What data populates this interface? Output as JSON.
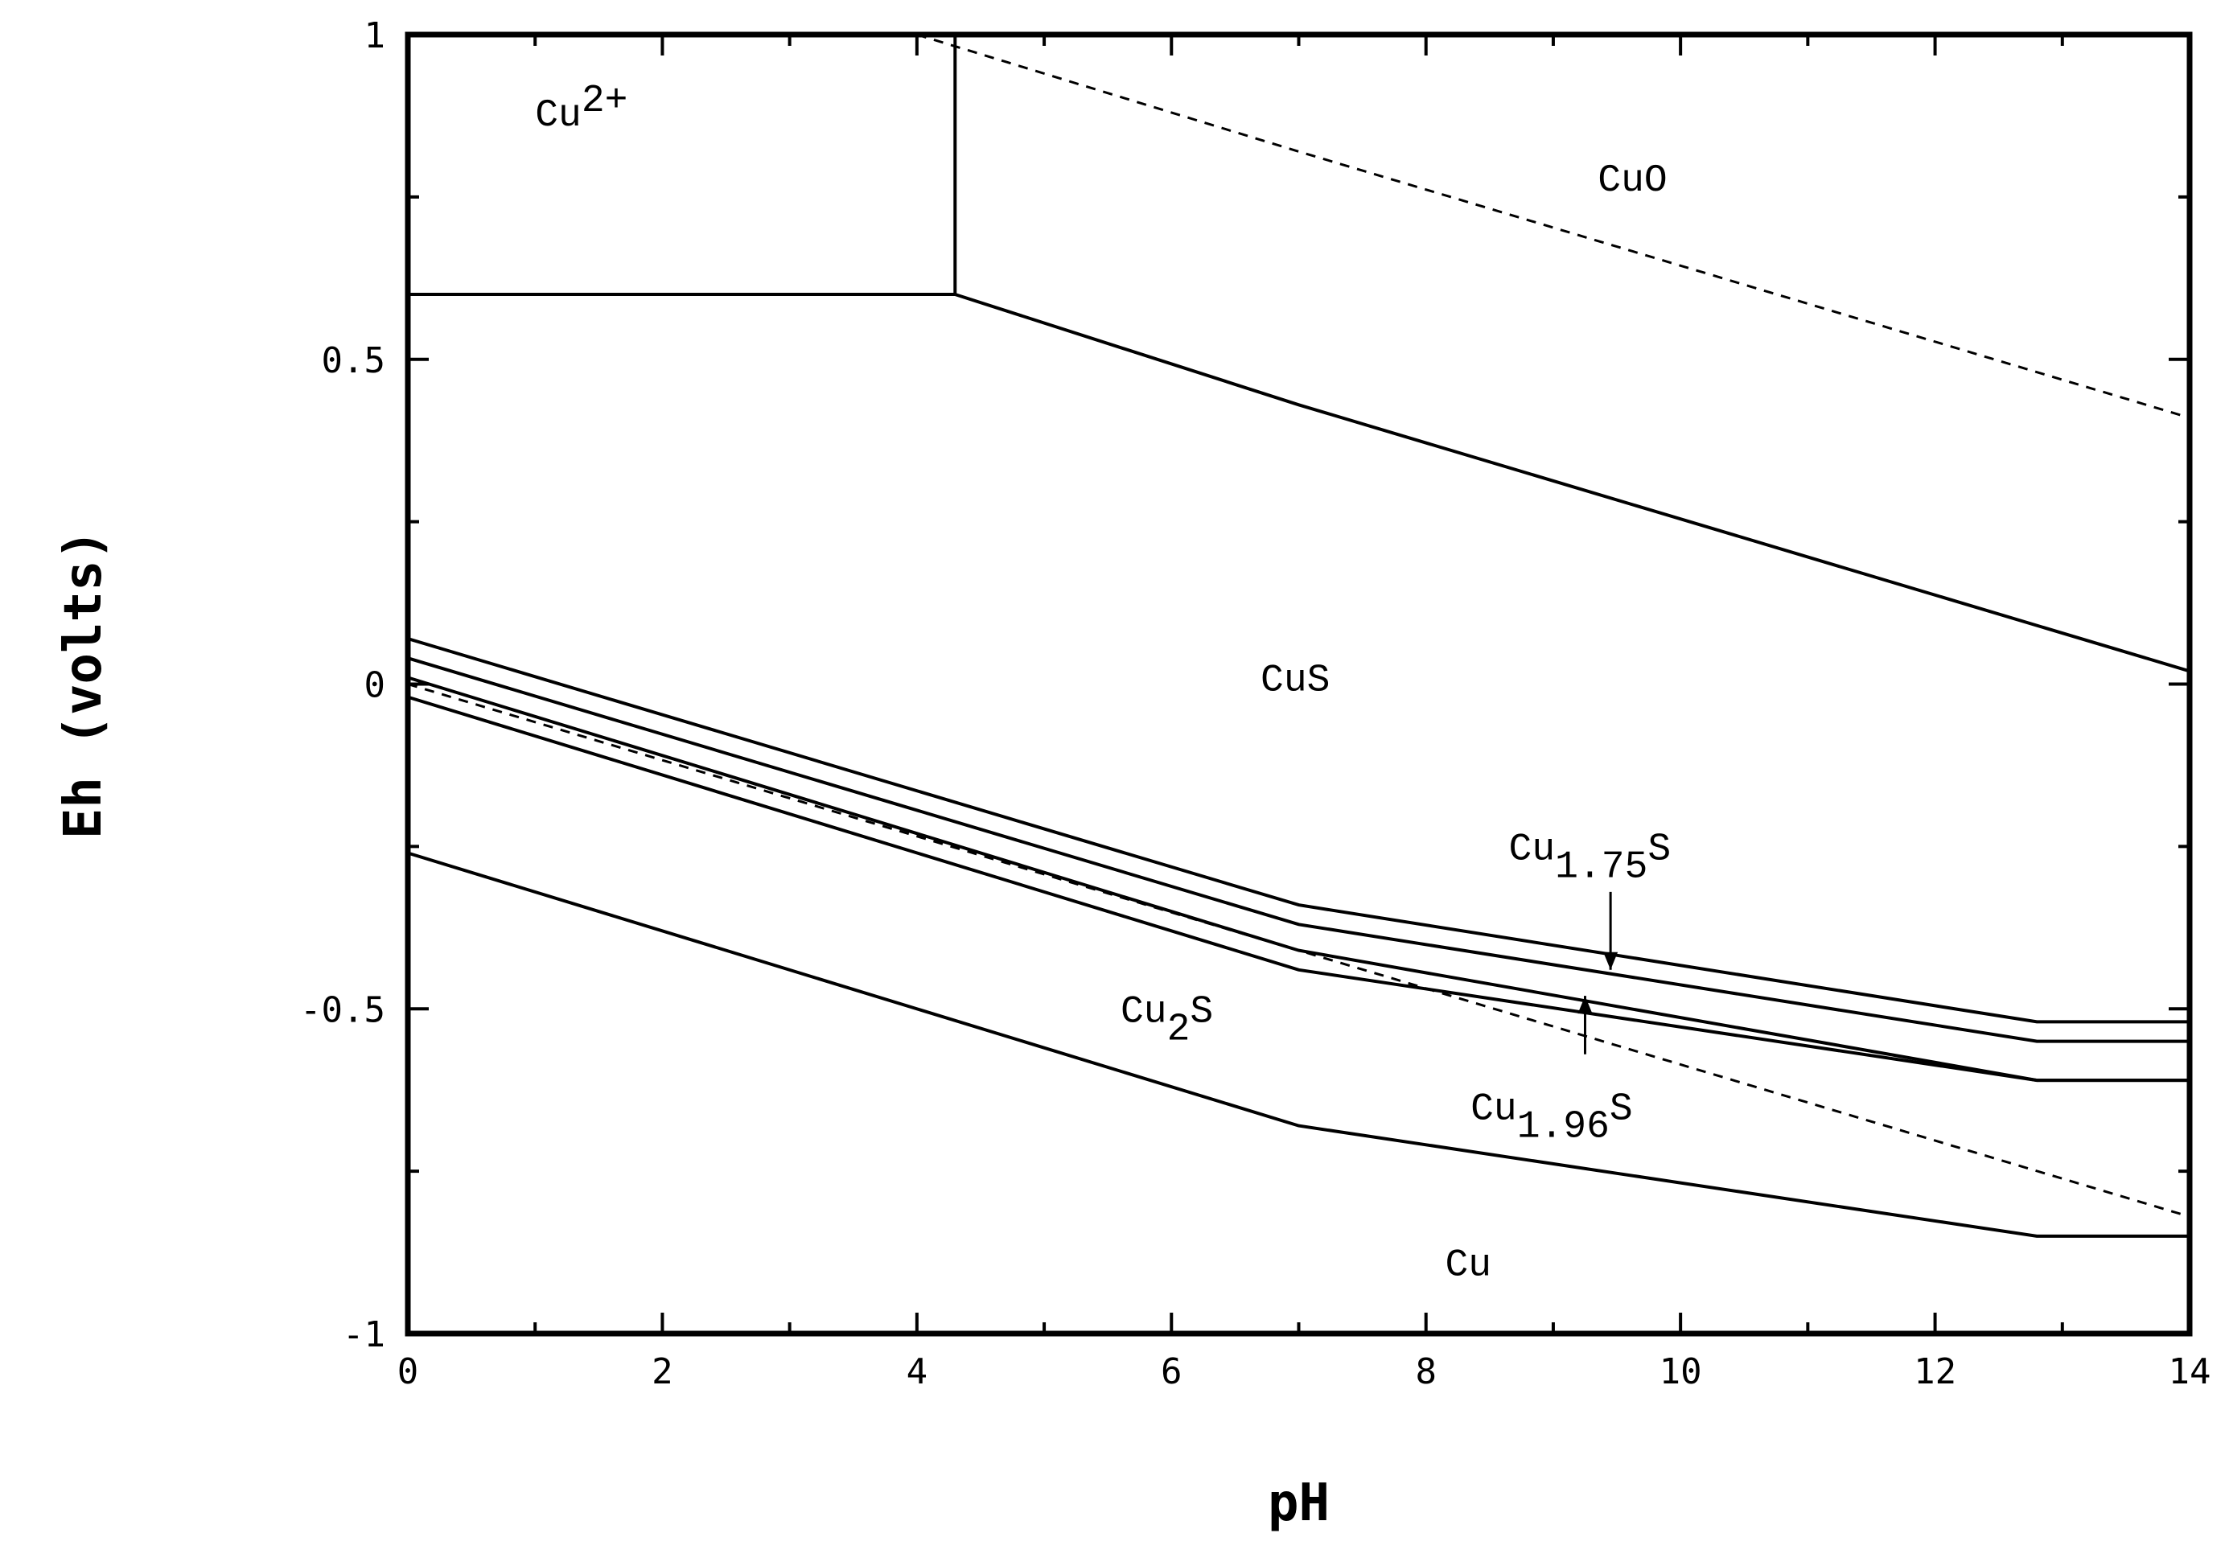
{
  "chart_data": {
    "type": "line",
    "title": "",
    "xlabel": "pH",
    "ylabel": "Eh (volts)",
    "xlim": [
      0,
      14
    ],
    "ylim": [
      -1,
      1
    ],
    "x_ticks": [
      "0",
      "2",
      "4",
      "6",
      "8",
      "10",
      "12",
      "14"
    ],
    "y_ticks": [
      "-1",
      "-0.5",
      "0",
      "0.5",
      "1"
    ],
    "grid": false,
    "legend": "none",
    "series": [
      {
        "style": "solid",
        "points": [
          [
            0,
            0.6
          ],
          [
            4.3,
            0.6
          ]
        ]
      },
      {
        "style": "solid",
        "points": [
          [
            4.3,
            1.0
          ],
          [
            4.3,
            0.6
          ]
        ]
      },
      {
        "style": "solid",
        "points": [
          [
            4.3,
            0.6
          ],
          [
            7.0,
            0.43
          ],
          [
            14,
            0.02
          ]
        ]
      },
      {
        "style": "dashed",
        "points": [
          [
            4.0,
            1.0
          ],
          [
            7.0,
            0.82
          ],
          [
            14,
            0.41
          ]
        ]
      },
      {
        "style": "solid",
        "points": [
          [
            0,
            0.07
          ],
          [
            7.0,
            -0.34
          ],
          [
            12.8,
            -0.52
          ],
          [
            14,
            -0.52
          ]
        ]
      },
      {
        "style": "solid",
        "points": [
          [
            0,
            0.04
          ],
          [
            7.0,
            -0.37
          ],
          [
            12.8,
            -0.55
          ],
          [
            14,
            -0.55
          ]
        ]
      },
      {
        "style": "solid",
        "points": [
          [
            0,
            0.01
          ],
          [
            7.0,
            -0.41
          ],
          [
            12.8,
            -0.61
          ],
          [
            14,
            -0.61
          ]
        ]
      },
      {
        "style": "solid",
        "points": [
          [
            0,
            -0.02
          ],
          [
            7.0,
            -0.44
          ],
          [
            12.8,
            -0.61
          ],
          [
            14,
            -0.61
          ]
        ]
      },
      {
        "style": "dashed",
        "points": [
          [
            0,
            0.0
          ],
          [
            7.0,
            -0.41
          ],
          [
            14,
            -0.82
          ]
        ]
      },
      {
        "style": "solid",
        "points": [
          [
            0,
            -0.26
          ],
          [
            7.0,
            -0.68
          ],
          [
            12.8,
            -0.85
          ],
          [
            14,
            -0.85
          ]
        ]
      }
    ],
    "annotations": [
      {
        "main": "Cu",
        "sup": "2+",
        "sub": "",
        "x": 1.0,
        "y": 0.86
      },
      {
        "main": "CuO",
        "sup": "",
        "sub": "",
        "x": 9.35,
        "y": 0.76
      },
      {
        "main": "CuS",
        "sup": "",
        "sub": "",
        "x": 6.7,
        "y": -0.01
      },
      {
        "main": "Cu",
        "sup": "",
        "sub": "1.75",
        "tail": "S",
        "x": 8.65,
        "y": -0.27
      },
      {
        "main": "Cu",
        "sup": "",
        "sub": "2",
        "tail": "S",
        "x": 5.6,
        "y": -0.52
      },
      {
        "main": "Cu",
        "sup": "",
        "sub": "1.96",
        "tail": "S",
        "x": 8.35,
        "y": -0.67
      },
      {
        "main": "Cu",
        "sup": "",
        "sub": "",
        "x": 8.15,
        "y": -0.91
      }
    ],
    "arrows": [
      {
        "from": [
          9.45,
          -0.32
        ],
        "to": [
          9.45,
          -0.44
        ]
      },
      {
        "from": [
          9.25,
          -0.57
        ],
        "to": [
          9.25,
          -0.48
        ]
      }
    ]
  }
}
